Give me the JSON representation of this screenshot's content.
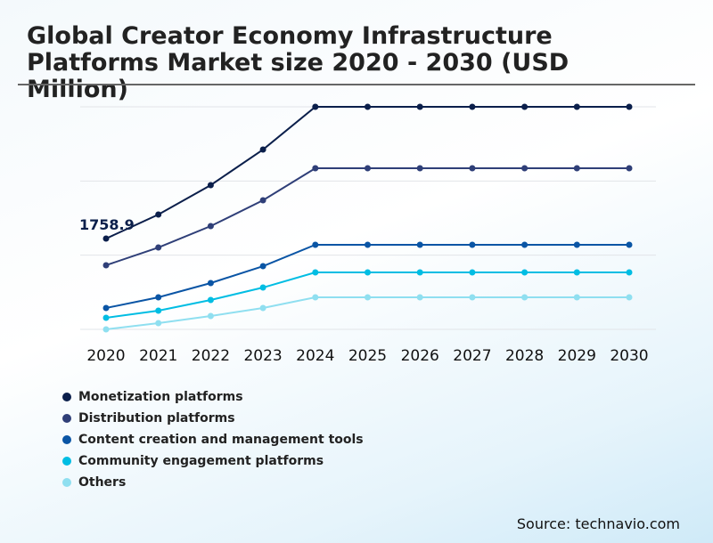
{
  "chart_data": {
    "type": "line",
    "title": "Global Creator Economy Infrastructure Platforms Market size 2020 - 2030 (USD Million)",
    "categories": [
      "2020",
      "2021",
      "2022",
      "2023",
      "2024",
      "2025",
      "2026",
      "2027",
      "2028",
      "2029",
      "2030"
    ],
    "ylim": [
      0,
      4311
    ],
    "grid": true,
    "legend_position": "bottom-left",
    "annotations": [
      {
        "series": 0,
        "index": 0,
        "label": "1758.9"
      }
    ],
    "series": [
      {
        "name": "Monetization platforms",
        "color": "#0b1f4b",
        "values": [
          1758.9,
          2224,
          2794,
          3483,
          4311,
          4311,
          4311,
          4311,
          4311,
          4311,
          4311
        ]
      },
      {
        "name": "Distribution platforms",
        "color": "#2f3f78",
        "values": [
          1242,
          1586,
          2000,
          2500,
          3121,
          3121,
          3121,
          3121,
          3121,
          3121,
          3121
        ]
      },
      {
        "name": "Content creation and management tools",
        "color": "#0a55a5",
        "values": [
          414,
          621,
          897,
          1224,
          1638,
          1638,
          1638,
          1638,
          1638,
          1638,
          1638
        ]
      },
      {
        "name": "Community engagement platforms",
        "color": "#00bde3",
        "values": [
          224,
          362,
          569,
          810,
          1104,
          1104,
          1104,
          1104,
          1104,
          1104,
          1104
        ]
      },
      {
        "name": "Others",
        "color": "#8fdff0",
        "values": [
          0,
          121,
          259,
          414,
          621,
          621,
          621,
          621,
          621,
          621,
          621
        ]
      }
    ]
  },
  "source": "Source: technavio.com"
}
